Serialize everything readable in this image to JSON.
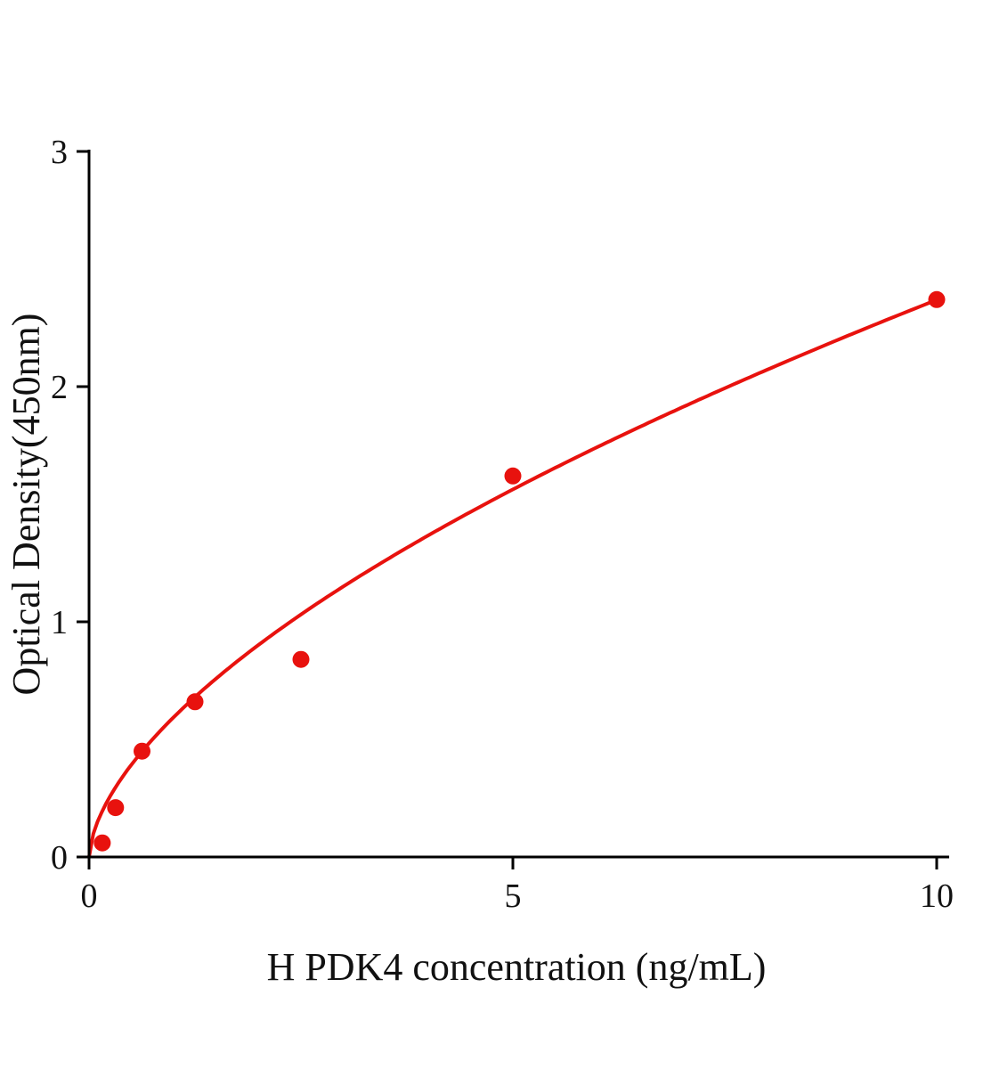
{
  "chart_data": {
    "type": "scatter",
    "title": "",
    "xlabel": "H PDK4 concentration (ng/mL)",
    "ylabel": "Optical Density(450nm)",
    "xlim": [
      0,
      10
    ],
    "ylim": [
      0,
      3
    ],
    "xticks": [
      0,
      5,
      10
    ],
    "yticks": [
      0,
      1,
      2,
      3
    ],
    "grid": false,
    "point_color": "#e8120e",
    "line_color": "#e8120e",
    "axis_color": "#000000",
    "points": [
      {
        "x": 0.156,
        "y": 0.06
      },
      {
        "x": 0.3125,
        "y": 0.21
      },
      {
        "x": 0.625,
        "y": 0.45
      },
      {
        "x": 1.25,
        "y": 0.66
      },
      {
        "x": 2.5,
        "y": 0.84
      },
      {
        "x": 5,
        "y": 1.62
      },
      {
        "x": 10,
        "y": 2.37
      }
    ],
    "fit_curve": {
      "type": "power",
      "a": 0.595,
      "b": 0.6
    }
  }
}
